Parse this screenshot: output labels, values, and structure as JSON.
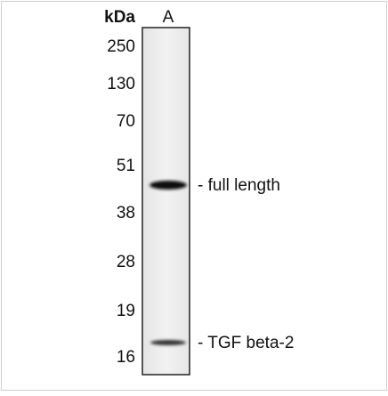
{
  "blot": {
    "unit_label": "kDa",
    "lanes": [
      "A"
    ],
    "markers": [
      "250",
      "130",
      "70",
      "51",
      "38",
      "28",
      "19",
      "16"
    ],
    "bands": [
      {
        "label": "- full length"
      },
      {
        "label": "- TGF beta-2"
      }
    ]
  }
}
